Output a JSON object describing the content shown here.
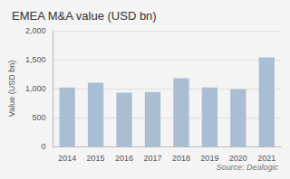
{
  "chart_data": {
    "type": "bar",
    "title": "EMEA M&A value (USD bn)",
    "ylabel": "Value (USD bn)",
    "annotations": [
      "Source: Dealogic"
    ],
    "categories": [
      "2014",
      "2015",
      "2016",
      "2017",
      "2018",
      "2019",
      "2020",
      "2021"
    ],
    "values": [
      1020,
      1100,
      930,
      940,
      1180,
      1020,
      990,
      1540
    ],
    "color": "#a9bed3",
    "ylim": [
      0,
      2000
    ],
    "yticks": [
      0,
      500,
      {
        "value": 1000,
        "label": "1,000"
      },
      {
        "value": 1500,
        "label": "1,500"
      },
      {
        "value": 2000,
        "label": "2,000"
      }
    ],
    "grid": true
  }
}
